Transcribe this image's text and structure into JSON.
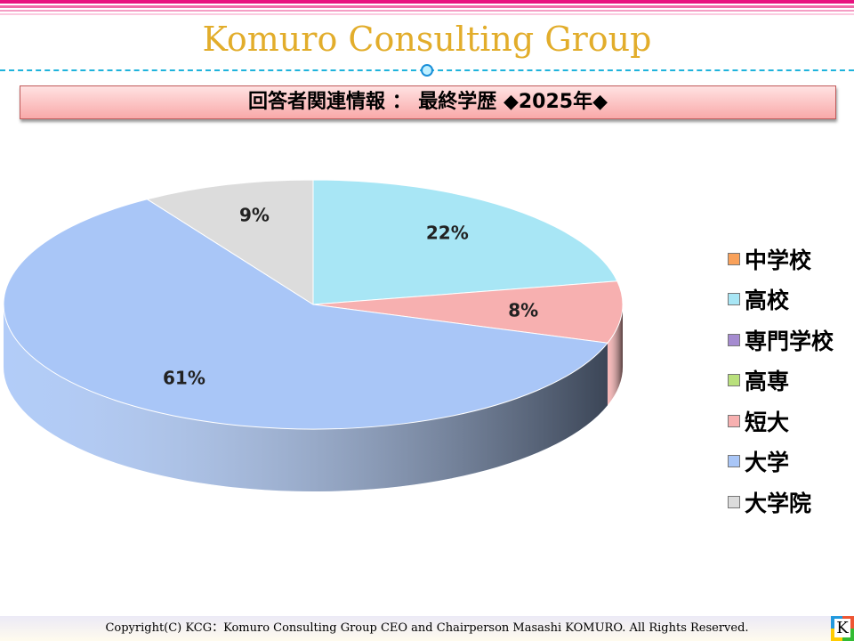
{
  "header": {
    "title": "Komuro Consulting Group",
    "banner": "回答者関連情報 ： 最終学歴 ◆2025年◆"
  },
  "chart_data": {
    "type": "pie",
    "title": "回答者関連情報 ： 最終学歴 ◆2025年◆",
    "categories": [
      "中学校",
      "高校",
      "専門学校",
      "高専",
      "短大",
      "大学",
      "大学院"
    ],
    "values": [
      0,
      22,
      0,
      0,
      8,
      61,
      9
    ],
    "labels": [
      "",
      "22%",
      "",
      "",
      "8%",
      "61%",
      "9%"
    ],
    "colors": [
      "#f9a15a",
      "#a8e6f5",
      "#a58bd0",
      "#b9e07c",
      "#f7b0b0",
      "#a9c6f7",
      "#dcdcdc"
    ],
    "legend_position": "right"
  },
  "footer": {
    "copyright": "Copyright(C)  KCG：Komuro Consulting Group CEO and Chairperson Masashi KOMURO. All Rights Reserved.",
    "logo": "K"
  }
}
